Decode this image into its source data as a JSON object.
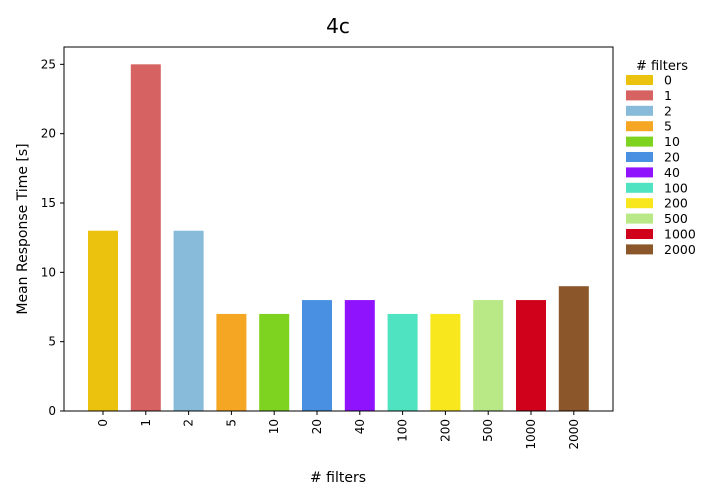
{
  "chart_data": {
    "type": "bar",
    "title": "4c",
    "xlabel": "# filters",
    "ylabel": "Mean Response Time [s]",
    "categories": [
      "0",
      "1",
      "2",
      "5",
      "10",
      "20",
      "40",
      "100",
      "200",
      "500",
      "1000",
      "2000"
    ],
    "values": [
      13,
      25,
      13,
      7,
      7,
      8,
      8,
      7,
      7,
      8,
      8,
      9
    ],
    "colors": [
      "#ebc20e",
      "#d76262",
      "#87bbd9",
      "#f5a623",
      "#7ed321",
      "#4a90e2",
      "#9013fe",
      "#50e3c2",
      "#f8e71c",
      "#b8e986",
      "#d0021b",
      "#8b572a"
    ],
    "ylim": [
      0,
      26.25
    ],
    "yticks": [
      0,
      5,
      10,
      15,
      20,
      25
    ],
    "grid": false,
    "legend": {
      "title": "# filters",
      "placement": "outside-right",
      "entries": [
        "0",
        "1",
        "2",
        "5",
        "10",
        "20",
        "40",
        "100",
        "200",
        "500",
        "1000",
        "2000"
      ]
    }
  }
}
